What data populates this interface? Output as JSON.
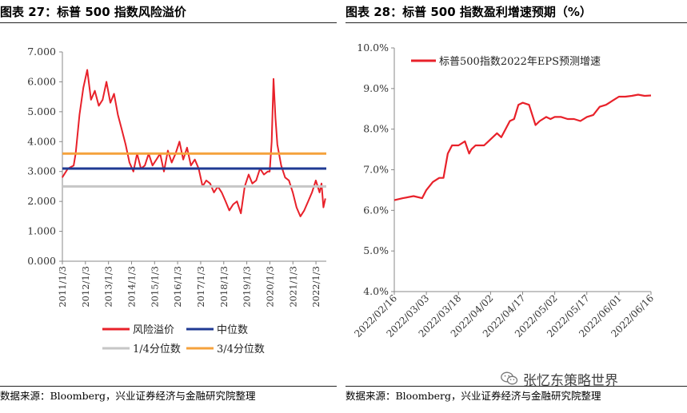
{
  "panels": [
    {
      "title": "图表 27：标普 500 指数风险溢价",
      "source": "数据来源：Bloomberg，兴业证券经济与金融研究院整理"
    },
    {
      "title": "图表 28：标普 500 指数盈利增速预期（%）",
      "source": "数据来源：Bloomberg，兴业证券经济与金融研究院整理"
    }
  ],
  "watermark": "张忆东策略世界",
  "watermark_icon": "wechat-icon",
  "chart_data": [
    {
      "type": "line",
      "title": "图表 27：标普 500 指数风险溢价",
      "ylim": [
        0,
        7
      ],
      "y_ticks": [
        "0.000",
        "1.000",
        "2.000",
        "3.000",
        "4.000",
        "5.000",
        "6.000",
        "7.000"
      ],
      "x_ticks": [
        "2011/1/3",
        "2012/1/3",
        "2013/1/3",
        "2014/1/3",
        "2015/1/3",
        "2016/1/3",
        "2017/1/3",
        "2018/1/3",
        "2019/1/3",
        "2020/1/3",
        "2021/1/3",
        "2022/1/3"
      ],
      "xlim": [
        "2011/1/3",
        "2022/6/16"
      ],
      "grid": false,
      "legend_position": "bottom",
      "colors": {
        "risk": "#e8212a",
        "median": "#1f3a93",
        "q1": "#c6c6c6",
        "q3": "#f5a23c"
      },
      "series": [
        {
          "name": "风险溢价",
          "style": "line",
          "x": [
            "2011/1",
            "2011/4",
            "2011/7",
            "2011/8",
            "2011/10",
            "2011/12",
            "2012/2",
            "2012/4",
            "2012/6",
            "2012/8",
            "2012/10",
            "2012/12",
            "2013/2",
            "2013/4",
            "2013/6",
            "2013/8",
            "2013/10",
            "2013/12",
            "2014/2",
            "2014/4",
            "2014/6",
            "2014/8",
            "2014/10",
            "2014/12",
            "2015/2",
            "2015/4",
            "2015/6",
            "2015/8",
            "2015/10",
            "2015/12",
            "2016/2",
            "2016/4",
            "2016/6",
            "2016/8",
            "2016/10",
            "2016/12",
            "2017/2",
            "2017/4",
            "2017/6",
            "2017/8",
            "2017/10",
            "2017/12",
            "2018/2",
            "2018/4",
            "2018/6",
            "2018/8",
            "2018/10",
            "2018/12",
            "2019/2",
            "2019/4",
            "2019/6",
            "2019/8",
            "2019/10",
            "2019/12",
            "2020/1",
            "2020/2",
            "2020/3",
            "2020/4",
            "2020/5",
            "2020/7",
            "2020/9",
            "2020/11",
            "2021/1",
            "2021/3",
            "2021/5",
            "2021/7",
            "2021/9",
            "2021/11",
            "2022/1",
            "2022/3",
            "2022/4",
            "2022/5",
            "2022/6"
          ],
          "y": [
            2.8,
            3.1,
            3.2,
            3.6,
            4.9,
            5.8,
            6.4,
            5.4,
            5.7,
            5.2,
            5.4,
            6.0,
            5.3,
            5.6,
            4.9,
            4.4,
            3.9,
            3.3,
            3.0,
            3.6,
            3.1,
            3.2,
            3.6,
            3.2,
            3.4,
            3.6,
            3.0,
            3.7,
            3.3,
            3.6,
            4.0,
            3.4,
            3.8,
            3.2,
            3.4,
            3.1,
            2.5,
            2.7,
            2.6,
            2.3,
            2.5,
            2.3,
            2.0,
            1.7,
            1.9,
            2.0,
            1.6,
            2.5,
            2.9,
            2.6,
            2.7,
            3.1,
            2.9,
            3.0,
            3.0,
            4.0,
            6.1,
            4.8,
            3.9,
            3.2,
            2.8,
            2.7,
            2.3,
            1.8,
            1.5,
            1.7,
            2.0,
            2.3,
            2.7,
            2.3,
            2.6,
            1.8,
            2.1
          ]
        },
        {
          "name": "中位数",
          "style": "flat",
          "value": 3.1
        },
        {
          "name": "1/4分位数",
          "style": "flat",
          "value": 2.5
        },
        {
          "name": "3/4分位数",
          "style": "flat",
          "value": 3.6
        }
      ]
    },
    {
      "type": "line",
      "title": "图表 28：标普 500 指数盈利增速预期（%）",
      "ylim": [
        4,
        10
      ],
      "y_ticks": [
        "4.0%",
        "5.0%",
        "6.0%",
        "7.0%",
        "8.0%",
        "9.0%",
        "10.0%"
      ],
      "x_ticks": [
        "2022/02/16",
        "2022/03/03",
        "2022/03/18",
        "2022/04/02",
        "2022/04/17",
        "2022/05/02",
        "2022/05/17",
        "2022/06/01",
        "2022/06/16"
      ],
      "xlim": [
        "2022/02/16",
        "2022/06/16"
      ],
      "grid": false,
      "legend_position": "top-left",
      "series": [
        {
          "name": "标普500指数2022年EPS预测增速",
          "color": "#e8212a",
          "x": [
            "2022/02/16",
            "2022/02/20",
            "2022/02/25",
            "2022/03/01",
            "2022/03/03",
            "2022/03/06",
            "2022/03/09",
            "2022/03/11",
            "2022/03/13",
            "2022/03/15",
            "2022/03/18",
            "2022/03/21",
            "2022/03/23",
            "2022/03/24",
            "2022/03/26",
            "2022/03/28",
            "2022/03/30",
            "2022/04/01",
            "2022/04/03",
            "2022/04/05",
            "2022/04/07",
            "2022/04/09",
            "2022/04/11",
            "2022/04/13",
            "2022/04/15",
            "2022/04/17",
            "2022/04/20",
            "2022/04/23",
            "2022/04/25",
            "2022/04/28",
            "2022/04/30",
            "2022/05/02",
            "2022/05/05",
            "2022/05/08",
            "2022/05/11",
            "2022/05/14",
            "2022/05/17",
            "2022/05/20",
            "2022/05/23",
            "2022/05/26",
            "2022/05/29",
            "2022/06/01",
            "2022/06/04",
            "2022/06/07",
            "2022/06/10",
            "2022/06/13",
            "2022/06/16"
          ],
          "y": [
            6.25,
            6.3,
            6.35,
            6.3,
            6.5,
            6.7,
            6.8,
            6.8,
            7.4,
            7.6,
            7.6,
            7.7,
            7.4,
            7.5,
            7.6,
            7.6,
            7.6,
            7.7,
            7.8,
            7.9,
            7.8,
            8.0,
            8.2,
            8.25,
            8.6,
            8.65,
            8.6,
            8.1,
            8.2,
            8.3,
            8.25,
            8.3,
            8.3,
            8.25,
            8.25,
            8.2,
            8.3,
            8.35,
            8.55,
            8.6,
            8.7,
            8.8,
            8.8,
            8.82,
            8.85,
            8.82,
            8.83
          ]
        }
      ]
    }
  ]
}
